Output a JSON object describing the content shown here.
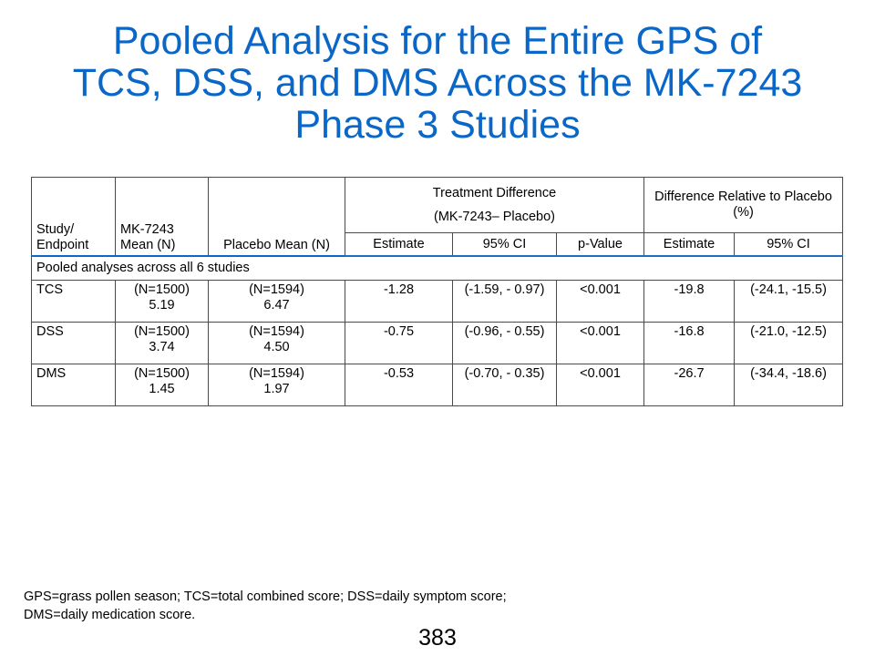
{
  "title": {
    "lines": [
      "Pooled Analysis for the Entire GPS of",
      "TCS, DSS, and DMS Across the MK-7243",
      "Phase 3 Studies"
    ]
  },
  "table": {
    "headers": {
      "study": "Study/ Endpoint",
      "mk_mean": "MK-7243 Mean (N)",
      "placebo_mean": "Placebo Mean (N)",
      "treatment_difference": {
        "line1": "Treatment Difference",
        "line2": "(MK-7243– Placebo)"
      },
      "relative_difference": "Difference Relative to Placebo (%)",
      "sub": [
        "Estimate",
        "95% CI",
        "p-Value",
        "Estimate",
        "95% CI"
      ]
    },
    "section_label": "Pooled analyses across all 6 studies",
    "rows": [
      {
        "endpoint": "TCS",
        "mk_n": "(N=1500)",
        "mk_mean": "5.19",
        "pl_n": "(N=1594)",
        "pl_mean": "6.47",
        "td_estimate": "-1.28",
        "td_ci": "(-1.59, - 0.97)",
        "p_value": "<0.001",
        "rel_estimate": "-19.8",
        "rel_ci": "(-24.1, -15.5)"
      },
      {
        "endpoint": "DSS",
        "mk_n": "(N=1500)",
        "mk_mean": "3.74",
        "pl_n": "(N=1594)",
        "pl_mean": "4.50",
        "td_estimate": "-0.75",
        "td_ci": "(-0.96, - 0.55)",
        "p_value": "<0.001",
        "rel_estimate": "-16.8",
        "rel_ci": "(-21.0, -12.5)"
      },
      {
        "endpoint": "DMS",
        "mk_n": "(N=1500)",
        "mk_mean": "1.45",
        "pl_n": "(N=1594)",
        "pl_mean": "1.97",
        "td_estimate": "-0.53",
        "td_ci": "(-0.70, - 0.35)",
        "p_value": "<0.001",
        "rel_estimate": "-26.7",
        "rel_ci": "(-34.4, -18.6)"
      }
    ]
  },
  "footnote": {
    "line1": "GPS=grass pollen season; TCS=total combined score; DSS=daily symptom score;",
    "line2": "DMS=daily medication score."
  },
  "page_number": "383",
  "colors": {
    "title": "#0a67c7",
    "header_rule": "#1f6fc1",
    "border": "#4a4a4a"
  }
}
